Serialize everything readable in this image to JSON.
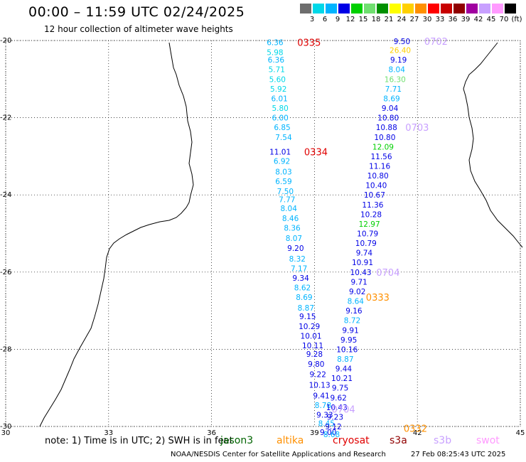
{
  "header": {
    "title": "00:00 – 11:59 UTC 02/24/2025",
    "subtitle": "12 hour collection of altimeter wave heights"
  },
  "color_scale": {
    "colors": [
      "#6e6e6e",
      "#00d8e8",
      "#00b4ff",
      "#0000e6",
      "#00d000",
      "#70e070",
      "#009000",
      "#ffff00",
      "#ffd000",
      "#ff9000",
      "#ff0000",
      "#c80000",
      "#900000",
      "#a000a0",
      "#c8a0ff",
      "#ff9aff",
      "#000000"
    ],
    "labels": [
      "3",
      "6",
      "9",
      "12",
      "15",
      "18",
      "21",
      "24",
      "27",
      "30",
      "33",
      "36",
      "39",
      "42",
      "45",
      "70",
      "(ft)"
    ]
  },
  "map": {
    "lon_ticks": [
      "30",
      "33",
      "36",
      "39",
      "42",
      "45"
    ],
    "lat_ticks": [
      "-20",
      "-22",
      "-24",
      "-26",
      "-28",
      "-30"
    ],
    "lon_range": [
      30,
      45
    ],
    "lat_range": [
      -30,
      -20
    ],
    "grid": true,
    "tracks": [
      {
        "satellite": "cryosat",
        "time_label": "0335",
        "time_at": [
          38.5,
          -20.05
        ],
        "points": [
          {
            "lon": 37.85,
            "lat": -20.05,
            "v": "6.36"
          },
          {
            "lon": 37.85,
            "lat": -20.3,
            "v": "5.98"
          },
          {
            "lon": 37.88,
            "lat": -20.5,
            "v": "6.36"
          },
          {
            "lon": 37.9,
            "lat": -20.75,
            "v": "5.71"
          },
          {
            "lon": 37.92,
            "lat": -21.0,
            "v": "5.60"
          },
          {
            "lon": 37.95,
            "lat": -21.25,
            "v": "5.92"
          },
          {
            "lon": 37.98,
            "lat": -21.5,
            "v": "6.01"
          },
          {
            "lon": 38.0,
            "lat": -21.75,
            "v": "5.80"
          },
          {
            "lon": 38.0,
            "lat": -22.0,
            "v": "6.00"
          },
          {
            "lon": 38.06,
            "lat": -22.25,
            "v": "6.85"
          },
          {
            "lon": 38.1,
            "lat": -22.5,
            "v": "7.54"
          }
        ]
      },
      {
        "satellite": "cryosat",
        "time_label": "0334",
        "time_at": [
          38.7,
          -22.88
        ],
        "points": [
          {
            "lon": 38.0,
            "lat": -22.88,
            "v": "11.01"
          },
          {
            "lon": 38.05,
            "lat": -23.12,
            "v": "6.92"
          },
          {
            "lon": 38.1,
            "lat": -23.4,
            "v": "8.03"
          },
          {
            "lon": 38.1,
            "lat": -23.65,
            "v": "6.59"
          },
          {
            "lon": 38.15,
            "lat": -23.9,
            "v": "7.50"
          },
          {
            "lon": 38.2,
            "lat": -24.12,
            "v": "7.77"
          },
          {
            "lon": 38.25,
            "lat": -24.35,
            "v": "8.04"
          },
          {
            "lon": 38.3,
            "lat": -24.6,
            "v": "8.46"
          },
          {
            "lon": 38.35,
            "lat": -24.85,
            "v": "8.36"
          },
          {
            "lon": 38.4,
            "lat": -25.12,
            "v": "8.07"
          },
          {
            "lon": 38.45,
            "lat": -25.38,
            "v": "9.20"
          },
          {
            "lon": 38.5,
            "lat": -25.65,
            "v": "8.32"
          },
          {
            "lon": 38.55,
            "lat": -25.9,
            "v": "7.17"
          },
          {
            "lon": 38.6,
            "lat": -26.15,
            "v": "9.34"
          },
          {
            "lon": 38.65,
            "lat": -26.4,
            "v": "8.62"
          },
          {
            "lon": 38.7,
            "lat": -26.65,
            "v": "8.69"
          },
          {
            "lon": 38.75,
            "lat": -26.92,
            "v": "8.87"
          },
          {
            "lon": 38.8,
            "lat": -27.15,
            "v": "9.15"
          },
          {
            "lon": 38.85,
            "lat": -27.4,
            "v": "10.29"
          },
          {
            "lon": 38.9,
            "lat": -27.65,
            "v": "10.01"
          },
          {
            "lon": 38.95,
            "lat": -27.9,
            "v": "10.11"
          },
          {
            "lon": 39.0,
            "lat": -28.12,
            "v": "9.28"
          },
          {
            "lon": 39.05,
            "lat": -28.38,
            "v": "9.80"
          },
          {
            "lon": 39.1,
            "lat": -28.65,
            "v": "9.22"
          },
          {
            "lon": 39.15,
            "lat": -28.92,
            "v": "10.13"
          },
          {
            "lon": 39.2,
            "lat": -29.2,
            "v": "9.41"
          },
          {
            "lon": 39.25,
            "lat": -29.45,
            "v": "8.78"
          },
          {
            "lon": 39.3,
            "lat": -29.7,
            "v": "9.33"
          },
          {
            "lon": 39.35,
            "lat": -29.92,
            "v": "8.45"
          },
          {
            "lon": 39.4,
            "lat": -30.15,
            "v": "9.00"
          }
        ]
      },
      {
        "satellite": "s3b",
        "time_label": "0702",
        "time_at": [
          42.2,
          -20.02
        ],
        "points": [
          {
            "lon": 41.55,
            "lat": -20.02,
            "v": "9.50"
          },
          {
            "lon": 41.5,
            "lat": -20.25,
            "v": "26.40"
          },
          {
            "lon": 41.45,
            "lat": -20.5,
            "v": "9.19"
          },
          {
            "lon": 41.4,
            "lat": -20.75,
            "v": "8.04"
          },
          {
            "lon": 41.35,
            "lat": -21.0,
            "v": "16.30"
          },
          {
            "lon": 41.3,
            "lat": -21.25,
            "v": "7.71"
          },
          {
            "lon": 41.25,
            "lat": -21.5,
            "v": "8.69"
          },
          {
            "lon": 41.2,
            "lat": -21.75,
            "v": "9.04"
          },
          {
            "lon": 41.15,
            "lat": -22.0,
            "v": "10.80"
          },
          {
            "lon": 41.1,
            "lat": -22.25,
            "v": "10.88"
          }
        ]
      },
      {
        "satellite": "s3b",
        "time_label": "0703",
        "time_at": [
          41.65,
          -22.25
        ],
        "points": [
          {
            "lon": 41.05,
            "lat": -22.5,
            "v": "10.80"
          },
          {
            "lon": 41.0,
            "lat": -22.75,
            "v": "12.09"
          },
          {
            "lon": 40.95,
            "lat": -23.0,
            "v": "11.56"
          },
          {
            "lon": 40.9,
            "lat": -23.25,
            "v": "11.16"
          },
          {
            "lon": 40.85,
            "lat": -23.5,
            "v": "10.80"
          },
          {
            "lon": 40.8,
            "lat": -23.75,
            "v": "10.40"
          },
          {
            "lon": 40.75,
            "lat": -24.0,
            "v": "10.67"
          },
          {
            "lon": 40.7,
            "lat": -24.25,
            "v": "11.36"
          },
          {
            "lon": 40.65,
            "lat": -24.5,
            "v": "10.28"
          },
          {
            "lon": 40.6,
            "lat": -24.75,
            "v": "12.97"
          },
          {
            "lon": 40.55,
            "lat": -25.0,
            "v": "10.79"
          },
          {
            "lon": 40.5,
            "lat": -25.25,
            "v": "10.79"
          },
          {
            "lon": 40.45,
            "lat": -25.5,
            "v": "9.74"
          },
          {
            "lon": 40.4,
            "lat": -25.75,
            "v": "10.91"
          },
          {
            "lon": 40.35,
            "lat": -26.0,
            "v": "10.43"
          }
        ]
      },
      {
        "satellite": "s3b",
        "time_label": "0704",
        "time_at": [
          40.8,
          -26.0
        ],
        "points": [
          {
            "lon": 40.3,
            "lat": -26.25,
            "v": "9.71"
          },
          {
            "lon": 40.25,
            "lat": -26.5,
            "v": "9.02"
          },
          {
            "lon": 40.2,
            "lat": -26.75,
            "v": "8.64"
          },
          {
            "lon": 40.15,
            "lat": -27.0,
            "v": "9.16"
          },
          {
            "lon": 40.1,
            "lat": -27.25,
            "v": "8.72"
          },
          {
            "lon": 40.05,
            "lat": -27.5,
            "v": "9.91"
          },
          {
            "lon": 40.0,
            "lat": -27.75,
            "v": "9.95"
          },
          {
            "lon": 39.95,
            "lat": -28.0,
            "v": "10.16"
          },
          {
            "lon": 39.9,
            "lat": -28.25,
            "v": "8.87"
          },
          {
            "lon": 39.85,
            "lat": -28.5,
            "v": "9.44"
          },
          {
            "lon": 39.8,
            "lat": -28.75,
            "v": "10.21"
          },
          {
            "lon": 39.75,
            "lat": -29.0,
            "v": "9.75"
          },
          {
            "lon": 39.7,
            "lat": -29.25,
            "v": "9.62"
          },
          {
            "lon": 39.65,
            "lat": -29.5,
            "v": "10.43"
          },
          {
            "lon": 39.6,
            "lat": -29.75,
            "v": "9.23"
          },
          {
            "lon": 39.55,
            "lat": -30.0,
            "v": "9.12"
          },
          {
            "lon": 39.5,
            "lat": -30.2,
            "v": "8.68"
          }
        ]
      },
      {
        "satellite": "s3b",
        "time_label": "0704",
        "time_at": [
          39.5,
          -29.55
        ],
        "points": []
      },
      {
        "satellite": "altika",
        "time_label": "0333",
        "time_at": [
          40.5,
          -26.65
        ],
        "points": []
      },
      {
        "satellite": "altika",
        "time_label": "0332",
        "time_at": [
          41.6,
          -30.05
        ],
        "points": []
      }
    ]
  },
  "legend": {
    "note": "note:  1) Time is in UTC; 2) SWH is in feet",
    "items": [
      {
        "label": "jason3",
        "color": "#006400"
      },
      {
        "label": "altika",
        "color": "#ff9000"
      },
      {
        "label": "cryosat",
        "color": "#e00000"
      },
      {
        "label": "s3a",
        "color": "#900000"
      },
      {
        "label": "s3b",
        "color": "#c8a0ff"
      },
      {
        "label": "swot",
        "color": "#ff9aff"
      }
    ]
  },
  "footer": {
    "credit": "NOAA/NESDIS Center for Satellite Applications and Research",
    "stamp": "27 Feb 08:25:43 UTC 2025"
  }
}
